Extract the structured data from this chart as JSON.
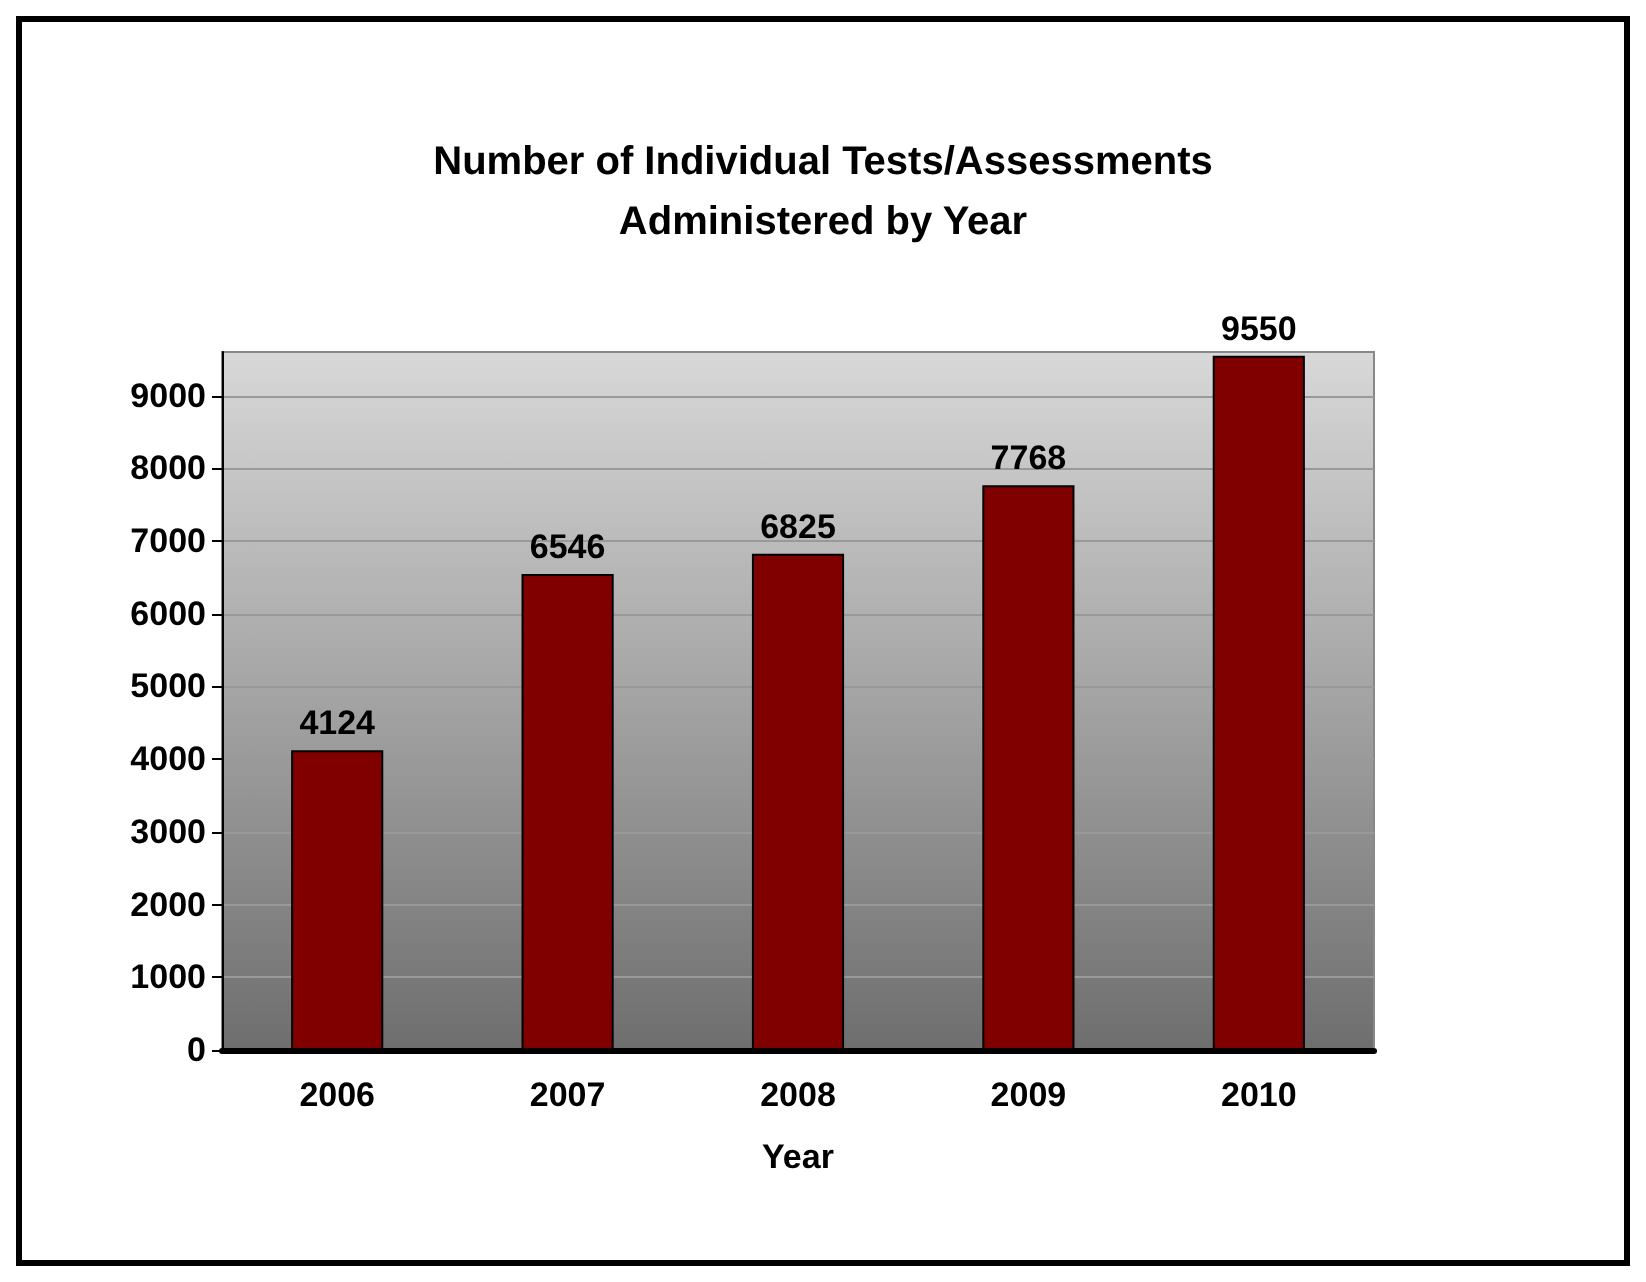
{
  "chart_data": {
    "type": "bar",
    "title": "Number of Individual Tests/Assessments\nAdministered by Year",
    "xlabel": "Year",
    "categories": [
      "2006",
      "2007",
      "2008",
      "2009",
      "2010"
    ],
    "values": [
      4124,
      6546,
      6825,
      7768,
      9550
    ],
    "color": "#800000",
    "ylim": [
      0,
      9600
    ],
    "yticks": [
      0,
      1000,
      2000,
      3000,
      4000,
      5000,
      6000,
      7000,
      8000,
      9000
    ],
    "grid": "y",
    "data_labels": true
  }
}
